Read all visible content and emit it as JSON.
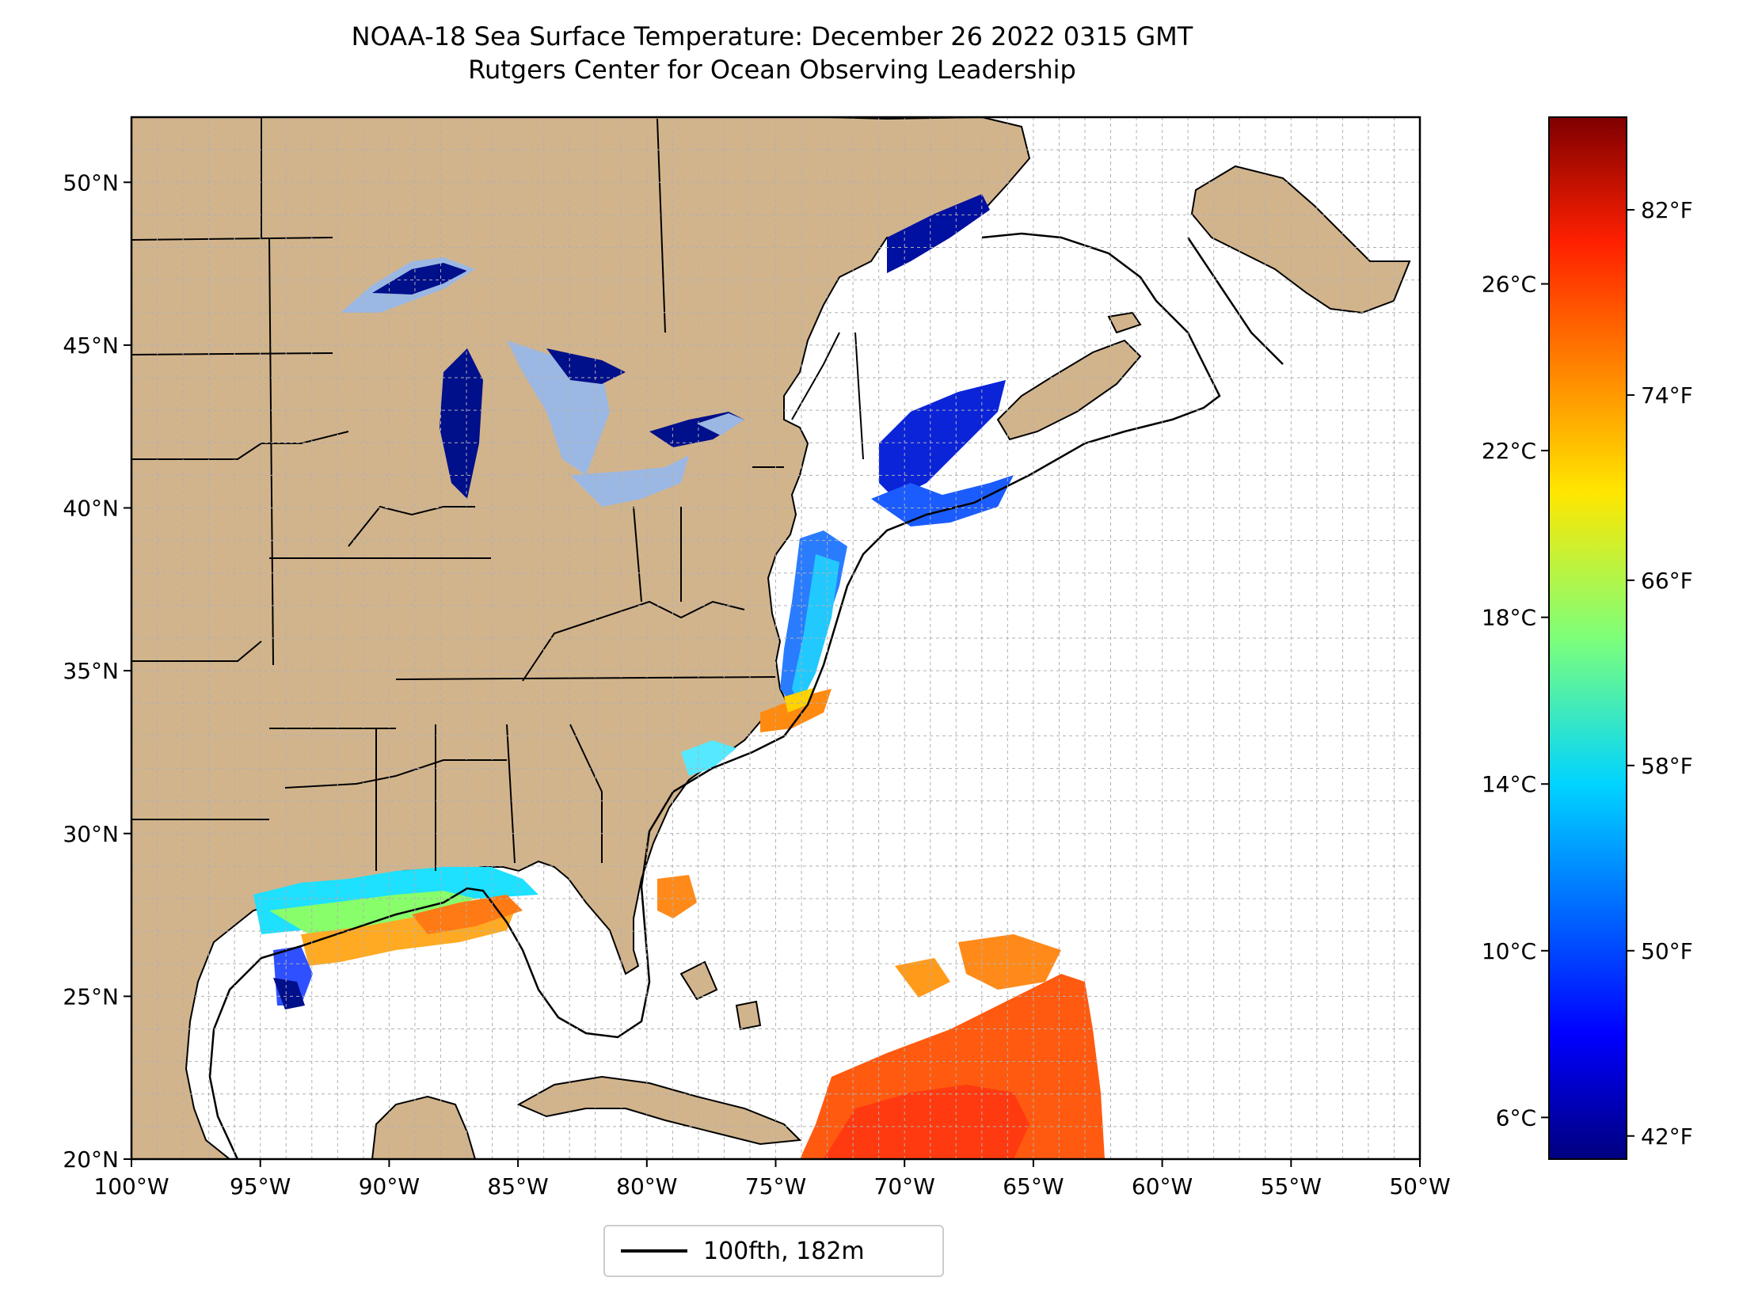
{
  "title": "NOAA-18 Sea Surface Temperature: December 26 2022 0315 GMT",
  "subtitle": "Rutgers Center for Ocean Observing Leadership",
  "map": {
    "lon_range": [
      -100,
      -50
    ],
    "lat_range": [
      20,
      52
    ],
    "x_ticks": [
      "100°W",
      "95°W",
      "90°W",
      "85°W",
      "80°W",
      "75°W",
      "70°W",
      "65°W",
      "60°W",
      "55°W",
      "50°W"
    ],
    "y_ticks": [
      "20°N",
      "25°N",
      "30°N",
      "35°N",
      "40°N",
      "45°N",
      "50°N"
    ],
    "grid": true,
    "land_color": "#d2b48c",
    "lake_color": "#9bb8e4",
    "ocean_color": "#ffffff"
  },
  "legend": {
    "label": "100fth, 182m",
    "placement": "bottom-center"
  },
  "colorbar": {
    "colormap": "jet",
    "celsius_ticks": [
      "26°C",
      "22°C",
      "18°C",
      "14°C",
      "10°C",
      "6°C"
    ],
    "fahrenheit_ticks": [
      "82°F",
      "74°F",
      "66°F",
      "58°F",
      "50°F",
      "42°F"
    ]
  }
}
